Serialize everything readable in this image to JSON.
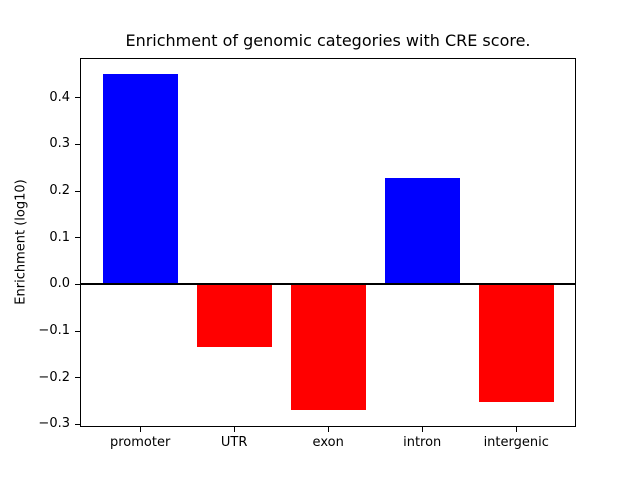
{
  "chart_data": {
    "type": "bar",
    "title": "Enrichment of genomic categories with CRE score.",
    "xlabel": "",
    "ylabel": "Enrichment (log10)",
    "categories": [
      "promoter",
      "UTR",
      "exon",
      "intron",
      "intergenic"
    ],
    "values": [
      0.45,
      -0.135,
      -0.27,
      0.228,
      -0.252
    ],
    "bar_colors": [
      "#0000ff",
      "#ff0000",
      "#ff0000",
      "#0000ff",
      "#ff0000"
    ],
    "colors": {
      "positive": "#0000ff",
      "negative": "#ff0000",
      "axis": "#000000",
      "background": "#ffffff"
    },
    "ylim": [
      -0.306,
      0.486
    ],
    "yticks": [
      0.4,
      0.3,
      0.2,
      0.1,
      0.0,
      -0.1,
      -0.2,
      -0.3
    ],
    "ytick_labels": [
      "0.4",
      "0.3",
      "0.2",
      "0.1",
      "0.0",
      "−0.1",
      "−0.2",
      "−0.3"
    ],
    "bar_width_fraction": 0.8,
    "zero_line_at": 0.0,
    "grid": false,
    "legend": false
  }
}
